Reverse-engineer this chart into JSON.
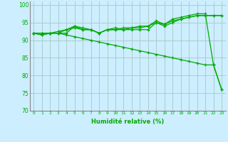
{
  "xlabel": "Humidité relative (%)",
  "ylabel": "",
  "xlim": [
    -0.5,
    23.5
  ],
  "ylim": [
    70,
    101
  ],
  "yticks": [
    70,
    75,
    80,
    85,
    90,
    95,
    100
  ],
  "xticks": [
    0,
    1,
    2,
    3,
    4,
    5,
    6,
    7,
    8,
    9,
    10,
    11,
    12,
    13,
    14,
    15,
    16,
    17,
    18,
    19,
    20,
    21,
    22,
    23
  ],
  "background_color": "#cceeff",
  "grid_color": "#aacccc",
  "line_color": "#00aa00",
  "series": [
    [
      92,
      91.5,
      92,
      92,
      93,
      94,
      93,
      93,
      92,
      93,
      93,
      93,
      93,
      93,
      93,
      95,
      94,
      95,
      96,
      96.5,
      97,
      97,
      97,
      97
    ],
    [
      92,
      92,
      92,
      92,
      92,
      94,
      93.5,
      93,
      92,
      93,
      93.5,
      93,
      93.5,
      93.5,
      94,
      95.5,
      94.5,
      96,
      96.5,
      97,
      97.5,
      97.5,
      83,
      76
    ],
    [
      92,
      92,
      92,
      92.5,
      93,
      93.5,
      93,
      93,
      92,
      93,
      93,
      93.5,
      93.5,
      94,
      94,
      95,
      94.5,
      95.5,
      96,
      96.5,
      97,
      97,
      97,
      97
    ],
    [
      92,
      91.5,
      92,
      92,
      91.5,
      91,
      90.5,
      90,
      89.5,
      89,
      88.5,
      88,
      87.5,
      87,
      86.5,
      86,
      85.5,
      85,
      84.5,
      84,
      83.5,
      83,
      83,
      76
    ]
  ]
}
